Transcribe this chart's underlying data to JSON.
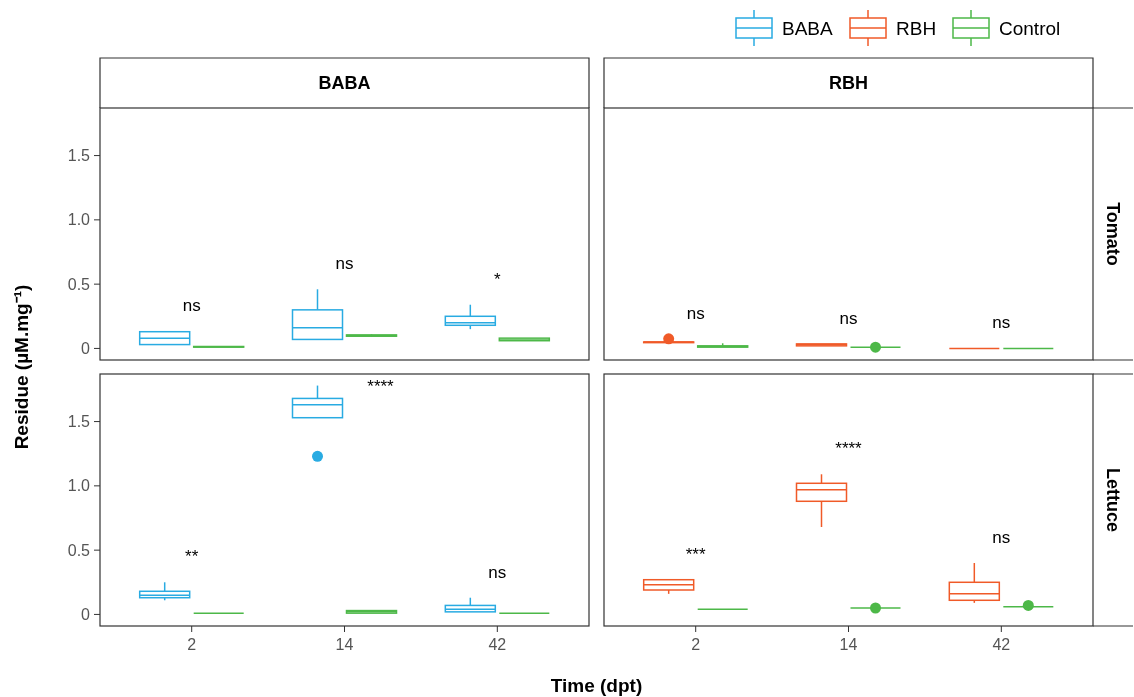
{
  "chart_data": [
    {
      "type": "box",
      "title": "BABA",
      "ylabel": "Residue (µM.mg⁻¹)",
      "legend": "top right",
      "tick_labels": "y",
      "categories": [
        "2",
        "14",
        "42"
      ],
      "ylim": [
        -0.09,
        1.87
      ],
      "yticks": [
        0,
        0.5,
        {
          "value": 1,
          "label": "1.0"
        },
        1.5
      ],
      "series": [
        {
          "name": "BABA",
          "color": "#29abe2",
          "boxes": [
            {
              "low": 0.03,
              "q1": 0.03,
              "median": 0.08,
              "q3": 0.13,
              "high": 0.135
            },
            {
              "low": 0.07,
              "q1": 0.07,
              "median": 0.16,
              "q3": 0.3,
              "high": 0.46
            },
            {
              "low": 0.15,
              "q1": 0.18,
              "median": 0.2,
              "q3": 0.25,
              "high": 0.34
            }
          ]
        },
        {
          "name": "Control",
          "color": "#4db848",
          "boxes": [
            {
              "low": 0.01,
              "q1": 0.01,
              "median": 0.013,
              "q3": 0.015,
              "high": 0.015
            },
            {
              "low": 0.09,
              "q1": 0.095,
              "median": 0.1,
              "q3": 0.105,
              "high": 0.11
            },
            {
              "low": 0.06,
              "q1": 0.06,
              "median": 0.065,
              "q3": 0.08,
              "high": 0.08
            }
          ]
        }
      ],
      "annotations": [
        "ns",
        "ns",
        "*"
      ]
    },
    {
      "type": "box",
      "title": "RBH",
      "y2label": "Tomato",
      "legend": "top right",
      "tick_labels": false,
      "categories": [
        "2",
        "14",
        "42"
      ],
      "ylim": [
        -0.09,
        1.87
      ],
      "series": [
        {
          "name": "RBH",
          "color": "#f05a28",
          "boxes": [
            {
              "low": 0.045,
              "q1": 0.045,
              "median": 0.05,
              "q3": 0.05,
              "high": 0.05,
              "outliers": [
                0.075
              ]
            },
            {
              "low": 0.02,
              "q1": 0.02,
              "median": 0.03,
              "q3": 0.035,
              "high": 0.035
            },
            {
              "low": 0.0,
              "q1": 0.0,
              "median": 0.0,
              "q3": 0.0,
              "high": 0.0
            }
          ]
        },
        {
          "color": "#4db848",
          "boxes": [
            {
              "low": 0.01,
              "q1": 0.01,
              "median": 0.015,
              "q3": 0.02,
              "high": 0.04
            },
            {
              "low": 0.01,
              "q1": 0.01,
              "median": 0.01,
              "q3": 0.01,
              "high": 0.01,
              "outliers": [
                0.01
              ]
            },
            {
              "low": 0.0,
              "q1": 0.0,
              "median": 0.0,
              "q3": 0.0,
              "high": 0.0
            }
          ]
        }
      ],
      "annotations": [
        "ns",
        "ns",
        "ns"
      ]
    },
    {
      "type": "box",
      "xlabel": "Time (dpt)",
      "categories": [
        "2",
        "14",
        "42"
      ],
      "ylim": [
        -0.09,
        1.87
      ],
      "yticks": [
        0,
        0.5,
        {
          "value": 1,
          "label": "1.0"
        },
        1.5
      ],
      "series": [
        {
          "color": "#29abe2",
          "boxes": [
            {
              "low": 0.11,
              "q1": 0.13,
              "median": 0.15,
              "q3": 0.18,
              "high": 0.25
            },
            {
              "low": 1.53,
              "q1": 1.53,
              "median": 1.63,
              "q3": 1.68,
              "high": 1.78,
              "outliers": [
                1.23
              ]
            },
            {
              "low": 0.02,
              "q1": 0.02,
              "median": 0.04,
              "q3": 0.07,
              "high": 0.13
            }
          ]
        },
        {
          "color": "#4db848",
          "boxes": [
            {
              "low": 0.01,
              "q1": 0.01,
              "median": 0.01,
              "q3": 0.01,
              "high": 0.01
            },
            {
              "low": 0.01,
              "q1": 0.01,
              "median": 0.02,
              "q3": 0.03,
              "high": 0.03
            },
            {
              "low": 0.01,
              "q1": 0.01,
              "median": 0.01,
              "q3": 0.01,
              "high": 0.01
            }
          ]
        }
      ],
      "annotations": [
        "**",
        "****",
        "ns"
      ]
    },
    {
      "type": "box",
      "y2label": "Lettuce",
      "tick_labels": "x",
      "categories": [
        "2",
        "14",
        "42"
      ],
      "ylim": [
        -0.09,
        1.87
      ],
      "series": [
        {
          "color": "#f05a28",
          "boxes": [
            {
              "low": 0.16,
              "q1": 0.19,
              "median": 0.23,
              "q3": 0.27,
              "high": 0.27
            },
            {
              "low": 0.68,
              "q1": 0.88,
              "median": 0.97,
              "q3": 1.02,
              "high": 1.09
            },
            {
              "low": 0.09,
              "q1": 0.11,
              "median": 0.16,
              "q3": 0.25,
              "high": 0.4
            }
          ]
        },
        {
          "color": "#4db848",
          "boxes": [
            {
              "low": 0.04,
              "q1": 0.04,
              "median": 0.04,
              "q3": 0.04,
              "high": 0.04
            },
            {
              "low": 0.05,
              "q1": 0.05,
              "median": 0.05,
              "q3": 0.05,
              "high": 0.05,
              "outliers": [
                0.05
              ]
            },
            {
              "low": 0.06,
              "q1": 0.06,
              "median": 0.06,
              "q3": 0.06,
              "high": 0.06,
              "outliers": [
                0.07
              ]
            }
          ]
        }
      ],
      "annotations": [
        "***",
        "****",
        "ns"
      ]
    }
  ]
}
